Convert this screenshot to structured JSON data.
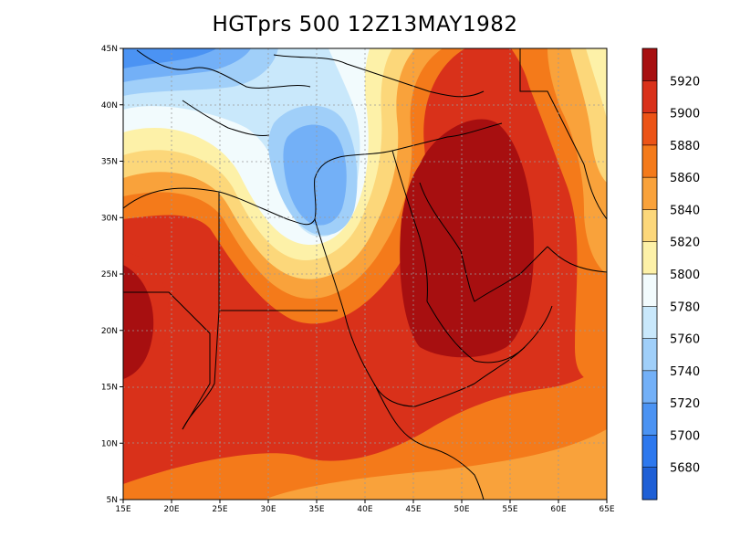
{
  "title": "HGTprs 500 12Z13MAY1982",
  "map": {
    "lon_range": [
      15,
      65
    ],
    "lat_range": [
      5,
      45
    ],
    "lat_ticks": [
      "5N",
      "10N",
      "15N",
      "20N",
      "25N",
      "30N",
      "35N",
      "40N",
      "45N"
    ],
    "lon_ticks": [
      "15E",
      "20E",
      "25E",
      "30E",
      "35E",
      "40E",
      "45E",
      "50E",
      "55E",
      "60E",
      "65E"
    ],
    "grid": true
  },
  "colorbar": {
    "labels": [
      "5680",
      "5700",
      "5720",
      "5740",
      "5760",
      "5780",
      "5800",
      "5820",
      "5840",
      "5860",
      "5880",
      "5900",
      "5920"
    ],
    "colors": [
      "#1e5fd6",
      "#2d78ee",
      "#4b93f3",
      "#73b0f7",
      "#a0cff9",
      "#c9e8fb",
      "#f2fbfd",
      "#fdf1a8",
      "#fcd77a",
      "#f9a23b",
      "#f47a1a",
      "#ec5316",
      "#d9311a",
      "#a70f10"
    ]
  }
}
